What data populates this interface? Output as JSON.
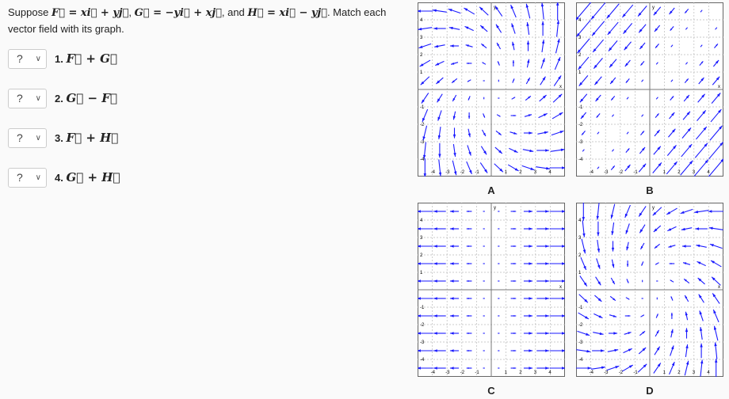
{
  "prompt": {
    "suppose": "Suppose ",
    "F_def": "F⃗ = xi⃗ + yj⃗",
    "sep1": ", ",
    "G_def": "G⃗ = −yi⃗ + xj⃗",
    "and": ", and ",
    "H_def": "H⃗ = xi⃗ − yj⃗",
    "rest": ". Match each vector field with its graph."
  },
  "items": [
    {
      "select": "?",
      "number": "1.",
      "expr": "F⃗ + G⃗"
    },
    {
      "select": "?",
      "number": "2.",
      "expr": "G⃗ − F⃗"
    },
    {
      "select": "?",
      "number": "3.",
      "expr": "F⃗ + H⃗"
    },
    {
      "select": "?",
      "number": "4.",
      "expr": "G⃗ + H⃗"
    }
  ],
  "arrow_color": "#1a1aff",
  "chart_data": [
    {
      "type": "vector-field",
      "label": "A",
      "u": "x-y",
      "v": "x+y",
      "xlim": [
        -5,
        5
      ],
      "ylim": [
        -5,
        5
      ],
      "xticks": [
        -4,
        -3,
        -2,
        -1,
        1,
        2,
        3,
        4
      ],
      "yticks": [
        -4,
        -3,
        -2,
        -1,
        1,
        2,
        3,
        4
      ],
      "xlabel": "x",
      "ylabel": "y",
      "grid": true
    },
    {
      "type": "vector-field",
      "label": "B",
      "u": "x-y",
      "v": "x-y",
      "xlim": [
        -5,
        5
      ],
      "ylim": [
        -5,
        5
      ],
      "xticks": [
        -4,
        -3,
        -2,
        -1,
        1,
        2,
        3,
        4
      ],
      "yticks": [
        -4,
        -3,
        -2,
        -1,
        1,
        2,
        3,
        4
      ],
      "xlabel": "x",
      "ylabel": "y",
      "grid": true
    },
    {
      "type": "vector-field",
      "label": "C",
      "u": "2*x",
      "v": "0",
      "xlim": [
        -5,
        5
      ],
      "ylim": [
        -5,
        5
      ],
      "xticks": [
        -4,
        -3,
        -2,
        -1,
        1,
        2,
        3,
        4
      ],
      "yticks": [
        -4,
        -3,
        -2,
        -1,
        1,
        2,
        3,
        4
      ],
      "xlabel": "x",
      "ylabel": "y",
      "grid": true
    },
    {
      "type": "vector-field",
      "label": "D",
      "u": "-x-y",
      "v": "x-y",
      "xlim": [
        -5,
        5
      ],
      "ylim": [
        -5,
        5
      ],
      "xticks": [
        -4,
        -3,
        -2,
        -1,
        1,
        2,
        3,
        4
      ],
      "yticks": [
        -4,
        -3,
        -2,
        -1,
        1,
        2,
        3,
        4
      ],
      "xlabel": "x",
      "ylabel": "y",
      "grid": true
    }
  ]
}
